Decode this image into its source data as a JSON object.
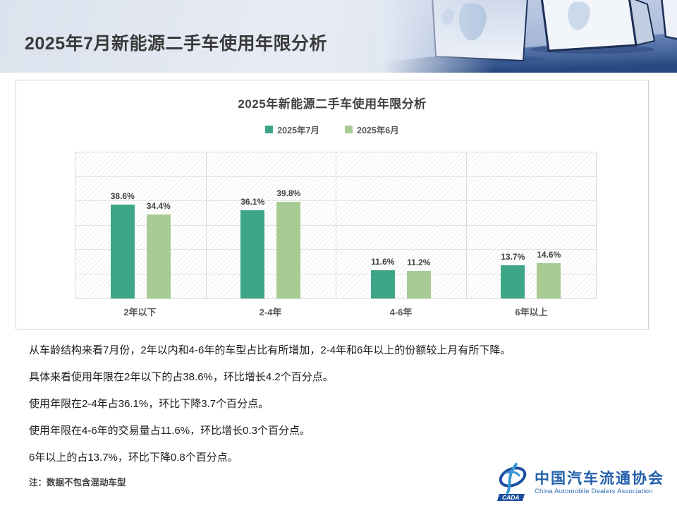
{
  "header": {
    "title": "2025年7月新能源二手车使用年限分析"
  },
  "chart_data": {
    "type": "bar",
    "title": "2025年新能源二手车使用年限分析",
    "categories": [
      "2年以下",
      "2-4年",
      "4-6年",
      "6年以上"
    ],
    "series": [
      {
        "name": "2025年7月",
        "color": "#3ea588",
        "values": [
          38.6,
          36.1,
          11.6,
          13.7
        ]
      },
      {
        "name": "2025年6月",
        "color": "#a8cb93",
        "values": [
          34.4,
          39.8,
          11.2,
          14.6
        ]
      }
    ],
    "xlabel": "",
    "ylabel": "",
    "ylim": [
      0,
      60
    ],
    "grid_interval": 10,
    "grid": true,
    "legend_position": "top",
    "value_suffix": "%",
    "plot_background": "diagonal-hatch"
  },
  "commentary": {
    "paragraphs": [
      "从车龄结构来看7月份，2年以内和4-6年的车型占比有所增加，2-4年和6年以上的份额较上月有所下降。",
      "具体来看使用年限在2年以下的占38.6%，环比增长4.2个百分点。",
      "使用年限在2-4年占36.1%，环比下降3.7个百分点。",
      "使用年限在4-6年的交易量占11.6%，环比增长0.3个百分点。",
      "6年以上的占13.7%，环比下降0.8个百分点。"
    ],
    "note": "注：数据不包含混动车型"
  },
  "footer": {
    "logo_acronym": "CADA",
    "org_name_cn": "中国汽车流通协会",
    "org_name_en": "China Automobile Dealers Association",
    "logo_color": "#2260ab"
  }
}
